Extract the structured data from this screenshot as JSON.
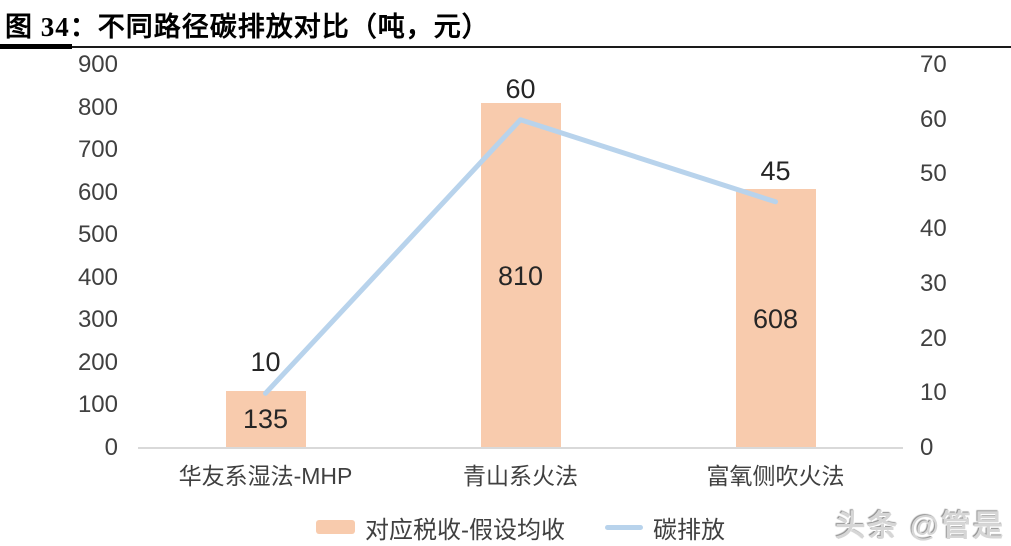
{
  "figure": {
    "title": "图 34：不同路径碳排放对比（吨，元）",
    "watermark": "头条 @管是"
  },
  "chart_data": {
    "type": "bar",
    "subtype": "combo-bar-line",
    "title": "图 34：不同路径碳排放对比（吨，元）",
    "categories": [
      "华友系湿法-MHP",
      "青山系火法",
      "富氧侧吹火法"
    ],
    "series": [
      {
        "name": "对应税收-假设均收",
        "type": "bar",
        "axis": "left",
        "values": [
          135,
          810,
          608
        ],
        "color": "#F8CBAD",
        "label_position": "inside-center"
      },
      {
        "name": "碳排放",
        "type": "line",
        "axis": "right",
        "values": [
          10,
          60,
          45
        ],
        "color": "#B8D3EC",
        "label_position": "above"
      }
    ],
    "left_axis": {
      "min": 0,
      "max": 900,
      "step": 100,
      "ticks": [
        900,
        800,
        700,
        600,
        500,
        400,
        300,
        200,
        100,
        0
      ]
    },
    "right_axis": {
      "min": 0,
      "max": 70,
      "step": 10,
      "ticks": [
        70,
        60,
        50,
        40,
        30,
        20,
        10,
        0
      ]
    },
    "legend_position": "bottom",
    "grid": false,
    "colors": {
      "axis_line": "#D9D9D9",
      "tick_text": "#404040",
      "data_label_text": "#262626"
    }
  }
}
